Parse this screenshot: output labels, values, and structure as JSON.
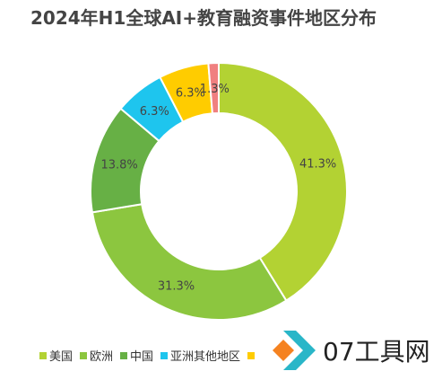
{
  "chart_data": {
    "type": "pie",
    "variant": "donut",
    "title": "2024年H1全球AI+教育融资事件地区分布",
    "categories": [
      "美国",
      "欧洲",
      "中国",
      "亚洲其他地区",
      "",
      ""
    ],
    "values": [
      41.3,
      31.3,
      13.8,
      6.3,
      6.3,
      1.3
    ],
    "labels": [
      "41.3%",
      "31.3%",
      "13.8%",
      "6.3%",
      "6.3%",
      "1.3%"
    ],
    "colors": [
      "#b3d233",
      "#8cc63f",
      "#67b045",
      "#1ec5ee",
      "#ffcc00",
      "#f08080"
    ],
    "legend_position": "bottom",
    "legend": [
      "美国",
      "欧洲",
      "中国",
      "亚洲其他地区"
    ]
  },
  "watermark": {
    "text": "07工具网",
    "logo_icon": "diamond-arrow-logo",
    "logo_colors": [
      "#f58220",
      "#29b6c8"
    ]
  }
}
